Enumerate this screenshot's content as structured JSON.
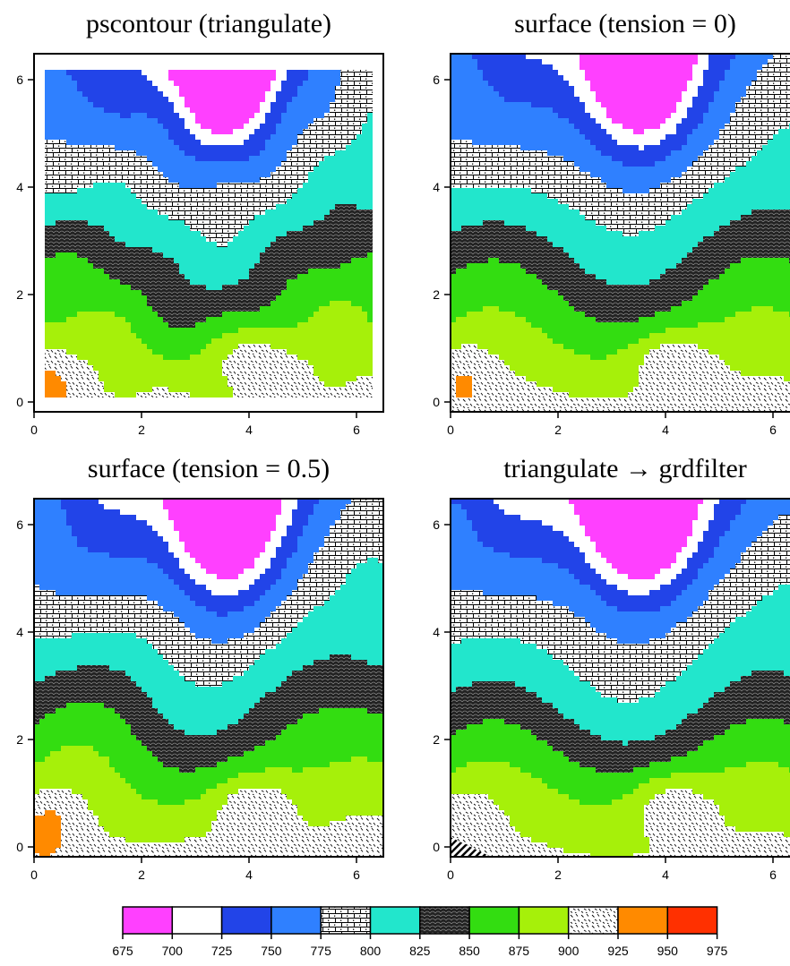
{
  "chart_data": [
    {
      "type": "contour",
      "title": "pscontour (triangulate)",
      "xlim": [
        0,
        6.5
      ],
      "ylim": [
        -0.2,
        6.5
      ],
      "xticks": [
        0,
        2,
        4,
        6
      ],
      "yticks": [
        0,
        2,
        4,
        6
      ],
      "peaks": [
        {
          "x": 4.1,
          "y": 0.8,
          "max": 950
        },
        {
          "x": 3.6,
          "y": 6.3,
          "min": 690
        }
      ]
    },
    {
      "type": "contour",
      "title": "surface (tension = 0)",
      "xlim": [
        0,
        6.5
      ],
      "ylim": [
        -0.2,
        6.5
      ],
      "xticks": [
        0,
        2,
        4,
        6
      ],
      "yticks": [
        0,
        2,
        4,
        6
      ],
      "peaks": [
        {
          "x": 4.1,
          "y": 0.8,
          "max": 955
        },
        {
          "x": 3.5,
          "y": 6.3,
          "min": 690
        }
      ]
    },
    {
      "type": "contour",
      "title": "surface (tension = 0.5)",
      "xlim": [
        0,
        6.5
      ],
      "ylim": [
        -0.2,
        6.5
      ],
      "xticks": [
        0,
        2,
        4,
        6
      ],
      "yticks": [
        0,
        2,
        4,
        6
      ],
      "peaks": [
        {
          "x": 4.1,
          "y": 0.8,
          "max": 952
        },
        {
          "x": 3.5,
          "y": 6.3,
          "min": 690
        }
      ]
    },
    {
      "type": "contour",
      "title": "triangulate → grdfilter",
      "xlim": [
        0,
        6.5
      ],
      "ylim": [
        -0.2,
        6.5
      ],
      "xticks": [
        0,
        2,
        4,
        6
      ],
      "yticks": [
        0,
        2,
        4,
        6
      ],
      "peaks": [
        {
          "x": 4.1,
          "y": 0.8,
          "max": 935
        },
        {
          "x": 3.6,
          "y": 6.3,
          "min": 695
        }
      ]
    }
  ],
  "colorbar": {
    "ticks": [
      675,
      700,
      725,
      750,
      775,
      800,
      825,
      850,
      875,
      900,
      925,
      950,
      975
    ],
    "bins": [
      {
        "from": 675,
        "to": 700,
        "fill": "#ff40ff",
        "pattern": null
      },
      {
        "from": 700,
        "to": 725,
        "fill": "#ffffff",
        "pattern": null
      },
      {
        "from": 725,
        "to": 750,
        "fill": "#2244e8",
        "pattern": null
      },
      {
        "from": 750,
        "to": 775,
        "fill": "#2f80ff",
        "pattern": null
      },
      {
        "from": 775,
        "to": 800,
        "fill": "#ffffff",
        "pattern": "brick"
      },
      {
        "from": 800,
        "to": 825,
        "fill": "#22e6cc",
        "pattern": null
      },
      {
        "from": 825,
        "to": 850,
        "fill": "#2a2a2a",
        "pattern": "scales"
      },
      {
        "from": 850,
        "to": 875,
        "fill": "#33dd11",
        "pattern": null
      },
      {
        "from": 875,
        "to": 900,
        "fill": "#a6f00a",
        "pattern": null
      },
      {
        "from": 900,
        "to": 925,
        "fill": "#ffffff",
        "pattern": "dashes"
      },
      {
        "from": 925,
        "to": 950,
        "fill": "#ff8a00",
        "pattern": null
      },
      {
        "from": 950,
        "to": 975,
        "fill": "#ff3000",
        "pattern": null
      }
    ]
  }
}
